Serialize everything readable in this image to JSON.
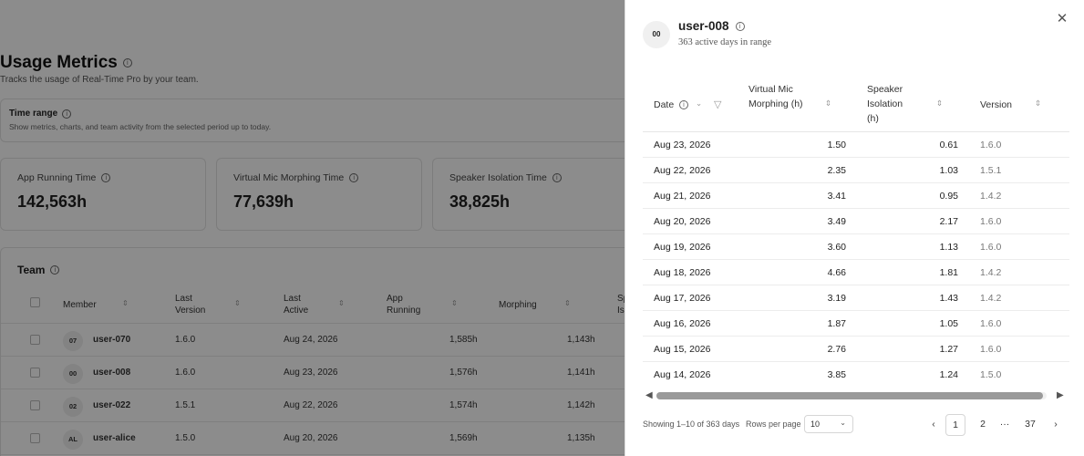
{
  "page": {
    "title": "Usage Metrics",
    "subtitle": "Tracks the usage of Real-Time Pro by your team.",
    "time_range": {
      "title": "Time range",
      "description": "Show metrics, charts, and team activity from the selected period up to today."
    },
    "cards": [
      {
        "label": "App Running Time",
        "value": "142,563h"
      },
      {
        "label": "Virtual Mic Morphing Time",
        "value": "77,639h"
      },
      {
        "label": "Speaker Isolation Time",
        "value": "38,825h"
      }
    ],
    "team": {
      "title": "Team",
      "headers": {
        "member": "Member",
        "last_version": "Last Version",
        "last_active": "Last Active",
        "app_running": "App Running",
        "morphing": "Morphing",
        "speaker": "Sp Is"
      },
      "rows": [
        {
          "initials": "07",
          "name": "user-070",
          "version": "1.6.0",
          "last_active": "Aug 24, 2026",
          "app_running": "1,585h",
          "morphing": "1,143h"
        },
        {
          "initials": "00",
          "name": "user-008",
          "version": "1.6.0",
          "last_active": "Aug 23, 2026",
          "app_running": "1,576h",
          "morphing": "1,141h"
        },
        {
          "initials": "02",
          "name": "user-022",
          "version": "1.5.1",
          "last_active": "Aug 22, 2026",
          "app_running": "1,574h",
          "morphing": "1,142h"
        },
        {
          "initials": "AL",
          "name": "user-alice",
          "version": "1.5.0",
          "last_active": "Aug 20, 2026",
          "app_running": "1,569h",
          "morphing": "1,135h"
        }
      ]
    }
  },
  "drawer": {
    "initials": "00",
    "name": "user-008",
    "subtitle": "363 active days in range",
    "headers": {
      "date": "Date",
      "morphing": "Virtual Mic Morphing (h)",
      "isolation": "Speaker Isolation (h)",
      "version": "Version"
    },
    "rows": [
      {
        "date": "Aug 23, 2026",
        "morphing": "1.50",
        "isolation": "0.61",
        "version": "1.6.0"
      },
      {
        "date": "Aug 22, 2026",
        "morphing": "2.35",
        "isolation": "1.03",
        "version": "1.5.1"
      },
      {
        "date": "Aug 21, 2026",
        "morphing": "3.41",
        "isolation": "0.95",
        "version": "1.4.2"
      },
      {
        "date": "Aug 20, 2026",
        "morphing": "3.49",
        "isolation": "2.17",
        "version": "1.6.0"
      },
      {
        "date": "Aug 19, 2026",
        "morphing": "3.60",
        "isolation": "1.13",
        "version": "1.6.0"
      },
      {
        "date": "Aug 18, 2026",
        "morphing": "4.66",
        "isolation": "1.81",
        "version": "1.4.2"
      },
      {
        "date": "Aug 17, 2026",
        "morphing": "3.19",
        "isolation": "1.43",
        "version": "1.4.2"
      },
      {
        "date": "Aug 16, 2026",
        "morphing": "1.87",
        "isolation": "1.05",
        "version": "1.6.0"
      },
      {
        "date": "Aug 15, 2026",
        "morphing": "2.76",
        "isolation": "1.27",
        "version": "1.6.0"
      },
      {
        "date": "Aug 14, 2026",
        "morphing": "3.85",
        "isolation": "1.24",
        "version": "1.5.0"
      }
    ],
    "scroll_fraction": 0.99,
    "footer": {
      "showing": "Showing 1–10 of 363 days",
      "rows_per_page_label": "Rows per page",
      "rows_per_page_value": "10",
      "pages": [
        "1",
        "2",
        "···",
        "37"
      ],
      "current_page": "1"
    }
  },
  "icons": {
    "info": "info-circle-icon",
    "close": "close-icon",
    "sort": "sort-icon",
    "filter": "filter-icon",
    "chevron_down": "chevron-down-icon",
    "prev": "chevron-left-icon",
    "next": "chevron-right-icon"
  }
}
